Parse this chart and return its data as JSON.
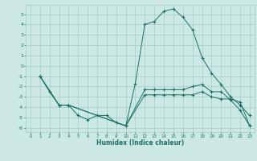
{
  "xlabel": "Humidex (Indice chaleur)",
  "bg_color": "#cce8e4",
  "grid_color": "#a0ccc8",
  "line_color": "#1a7068",
  "xlim": [
    -0.5,
    23.5
  ],
  "ylim": [
    -6.4,
    5.9
  ],
  "xticks": [
    0,
    1,
    2,
    3,
    4,
    5,
    6,
    7,
    8,
    9,
    10,
    11,
    12,
    13,
    14,
    15,
    16,
    17,
    18,
    19,
    20,
    21,
    22,
    23
  ],
  "yticks": [
    -6,
    -5,
    -4,
    -3,
    -2,
    -1,
    0,
    1,
    2,
    3,
    4,
    5
  ],
  "line1_x": [
    1,
    2,
    3,
    4,
    5,
    6,
    7,
    8,
    9,
    10,
    11,
    12,
    13,
    14,
    15,
    16,
    17,
    18,
    19,
    20,
    21,
    22,
    23
  ],
  "line1_y": [
    -1.0,
    -2.5,
    -3.8,
    -3.8,
    -4.8,
    -5.2,
    -4.8,
    -4.8,
    -5.5,
    -5.8,
    -1.7,
    4.0,
    4.3,
    5.3,
    5.5,
    4.7,
    3.5,
    0.8,
    -0.7,
    -1.8,
    -3.0,
    -3.8,
    -4.8
  ],
  "line2_x": [
    1,
    3,
    4,
    10,
    12,
    13,
    14,
    15,
    16,
    17,
    18,
    19,
    20,
    21,
    22,
    23
  ],
  "line2_y": [
    -1.0,
    -3.8,
    -3.8,
    -5.8,
    -2.8,
    -2.8,
    -2.8,
    -2.8,
    -2.8,
    -2.8,
    -2.5,
    -3.0,
    -3.2,
    -3.2,
    -3.5,
    -5.8
  ],
  "line3_x": [
    1,
    3,
    4,
    10,
    12,
    13,
    14,
    15,
    16,
    17,
    18,
    19,
    20,
    21,
    22,
    23
  ],
  "line3_y": [
    -1.0,
    -3.8,
    -3.8,
    -5.8,
    -2.3,
    -2.3,
    -2.3,
    -2.3,
    -2.3,
    -2.0,
    -1.8,
    -2.5,
    -2.5,
    -3.3,
    -4.3,
    -5.8
  ]
}
